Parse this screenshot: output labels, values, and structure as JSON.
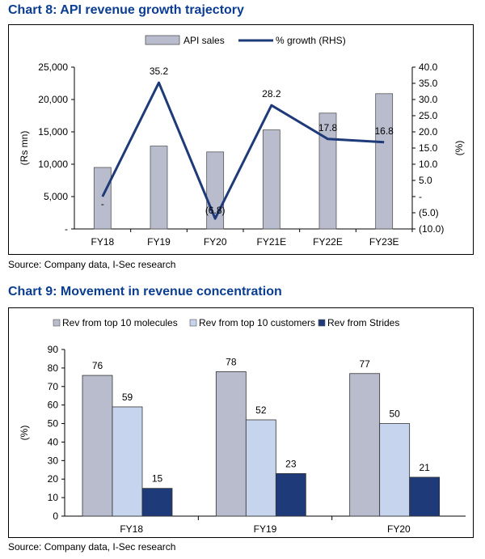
{
  "charts": [
    {
      "title": "Chart 8: API revenue growth trajectory",
      "source": "Source: Company data, I-Sec research"
    },
    {
      "title": "Chart 9: Movement in revenue concentration",
      "source": "Source: Company data, I-Sec research"
    }
  ],
  "colors": {
    "title": "#0b3d91",
    "bar_gray": "#b8bccd",
    "bar_light": "#c6d4ee",
    "bar_navy": "#1e3a78",
    "line": "#1e3a78"
  },
  "chart_data": [
    {
      "type": "bar",
      "title": "Chart 8: API revenue growth trajectory",
      "categories": [
        "FY18",
        "FY19",
        "FY20",
        "FY21E",
        "FY22E",
        "FY23E"
      ],
      "ylabel": "(Rs mn)",
      "y2label": "(%)",
      "ylim": [
        0,
        25000
      ],
      "y2lim": [
        -10,
        40
      ],
      "y_ticks": [
        "-",
        "5,000",
        "10,000",
        "15,000",
        "20,000",
        "25,000"
      ],
      "y_tick_values": [
        0,
        5000,
        10000,
        15000,
        20000,
        25000
      ],
      "y2_ticks": [
        "(10.0)",
        "(5.0)",
        "-",
        "5.0",
        "10.0",
        "15.0",
        "20.0",
        "25.0",
        "30.0",
        "35.0",
        "40.0"
      ],
      "y2_tick_values": [
        -10,
        -5,
        0,
        5,
        10,
        15,
        20,
        25,
        30,
        35,
        40
      ],
      "legend_position": "top",
      "grid": false,
      "series": [
        {
          "name": "API sales",
          "kind": "bar",
          "axis": "left",
          "values": [
            9500,
            12800,
            11900,
            15300,
            17900,
            20900
          ]
        },
        {
          "name": "% growth (RHS)",
          "kind": "line",
          "axis": "right",
          "values": [
            0,
            35.2,
            -6.8,
            28.2,
            17.8,
            16.8
          ],
          "labels": [
            "-",
            "35.2",
            "(6.8)",
            "28.2",
            "17.8",
            "16.8"
          ]
        }
      ]
    },
    {
      "type": "bar",
      "title": "Chart 9: Movement in revenue concentration",
      "categories": [
        "FY18",
        "FY19",
        "FY20"
      ],
      "ylabel": "(%)",
      "ylim": [
        0,
        90
      ],
      "y_ticks": [
        "0",
        "10",
        "20",
        "30",
        "40",
        "50",
        "60",
        "70",
        "80",
        "90"
      ],
      "y_tick_values": [
        0,
        10,
        20,
        30,
        40,
        50,
        60,
        70,
        80,
        90
      ],
      "legend_position": "top",
      "grid": false,
      "series": [
        {
          "name": "Rev from top 10 molecules",
          "values": [
            76,
            78,
            77
          ]
        },
        {
          "name": "Rev from top 10 customers",
          "values": [
            59,
            52,
            50
          ]
        },
        {
          "name": "Rev from Strides",
          "values": [
            15,
            23,
            21
          ]
        }
      ]
    }
  ]
}
